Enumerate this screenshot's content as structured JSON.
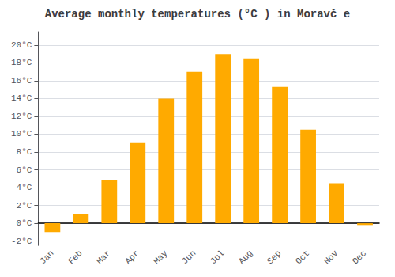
{
  "chart_data": {
    "type": "bar",
    "title": "Average monthly temperatures (°C ) in Moravč e",
    "categories": [
      "Jan",
      "Feb",
      "Mar",
      "Apr",
      "May",
      "Jun",
      "Jul",
      "Aug",
      "Sep",
      "Oct",
      "Nov",
      "Dec"
    ],
    "values": [
      -1.0,
      1.0,
      4.8,
      9.0,
      14.0,
      17.0,
      19.0,
      18.5,
      15.3,
      10.5,
      4.5,
      -0.2
    ],
    "color": "#FFAA00",
    "ylim": [
      -2.5,
      21.5
    ],
    "yticks": [
      {
        "value": -2,
        "label": "-2°C"
      },
      {
        "value": 0,
        "label": "0°C"
      },
      {
        "value": 2,
        "label": "2°C"
      },
      {
        "value": 4,
        "label": "4°C"
      },
      {
        "value": 6,
        "label": "6°C"
      },
      {
        "value": 8,
        "label": "8°C"
      },
      {
        "value": 10,
        "label": "10°C"
      },
      {
        "value": 12,
        "label": "12°C"
      },
      {
        "value": 14,
        "label": "14°C"
      },
      {
        "value": 16,
        "label": "16°C"
      },
      {
        "value": 18,
        "label": "18°C"
      },
      {
        "value": 20,
        "label": "20°C"
      }
    ],
    "grid": true
  }
}
